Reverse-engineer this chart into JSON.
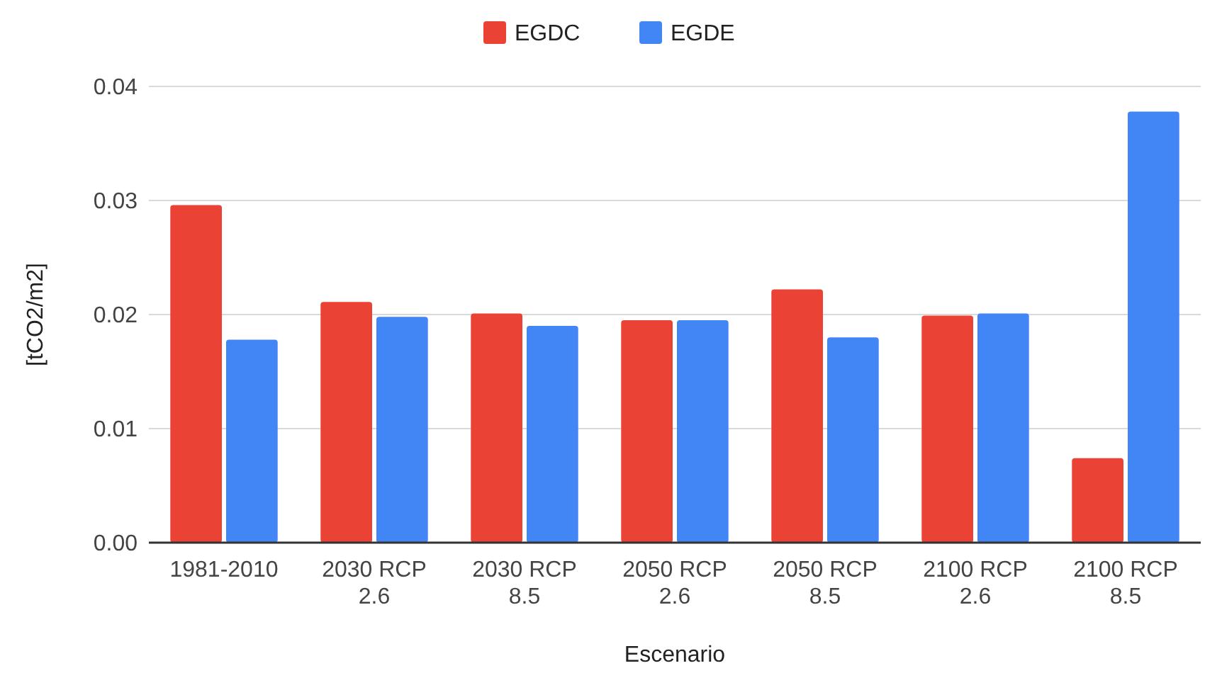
{
  "chart_data": {
    "type": "bar",
    "xlabel": "Escenario",
    "ylabel": "[tCO2/m2]",
    "categories": [
      "1981-2010",
      "2030 RCP 2.6",
      "2030 RCP 8.5",
      "2050 RCP 2.6",
      "2050 RCP 8.5",
      "2100 RCP 2.6",
      "2100 RCP 8.5"
    ],
    "series": [
      {
        "name": "EGDC",
        "color": "#ea4335",
        "values": [
          0.0296,
          0.0211,
          0.0201,
          0.0195,
          0.0222,
          0.0199,
          0.0074
        ]
      },
      {
        "name": "EGDE",
        "color": "#4285f4",
        "values": [
          0.0178,
          0.0198,
          0.019,
          0.0195,
          0.018,
          0.0201,
          0.0378
        ]
      }
    ],
    "ylim": [
      0,
      0.04
    ],
    "yticks": [
      "0.00",
      0.01,
      0.02,
      0.03,
      0.04
    ],
    "grid": "y",
    "legend": "top"
  }
}
